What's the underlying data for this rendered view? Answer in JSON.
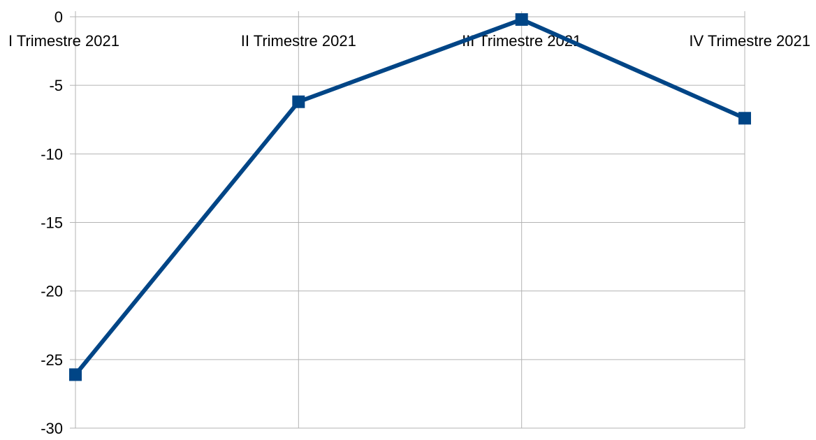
{
  "chart_data": {
    "type": "line",
    "categories": [
      "I Trimestre 2021",
      "II Trimestre 2021",
      "III Trimestre 2021",
      "IV Trimestre 2021"
    ],
    "series": [
      {
        "values": [
          -26.1,
          -6.2,
          -0.2,
          -7.4
        ]
      }
    ],
    "ylim": [
      -30,
      0
    ],
    "yticks": [
      0,
      -5,
      -10,
      -15,
      -20,
      -25,
      -30
    ],
    "grid": true,
    "line_color": "#004586",
    "grid_color": "#b3b3b3",
    "marker": "square"
  }
}
